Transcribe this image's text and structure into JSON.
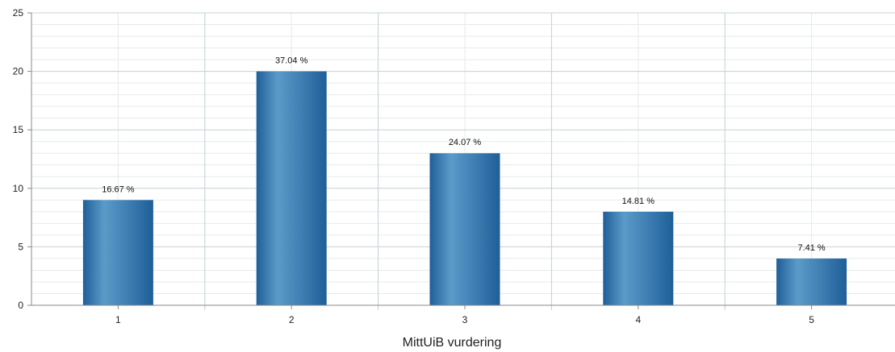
{
  "chart_data": {
    "type": "bar",
    "categories": [
      "1",
      "2",
      "3",
      "4",
      "5"
    ],
    "values": [
      9,
      20,
      13,
      8,
      4
    ],
    "data_labels": [
      "16.67 %",
      "37.04 %",
      "24.07 %",
      "14.81 %",
      "7.41 %"
    ],
    "xlabel": "MittUiB vurdering",
    "ylabel": "",
    "ylim": [
      0,
      25
    ],
    "yticks": [
      0,
      5,
      10,
      15,
      20,
      25
    ],
    "minor_y_step": 1,
    "grid": true,
    "legend": "none",
    "colors": {
      "bar_dark": "#1f5f99",
      "bar_light": "#5b9bc9",
      "grid_major": "#c5d0d6",
      "grid_minor": "#e6eaec",
      "axis": "#888888"
    }
  }
}
